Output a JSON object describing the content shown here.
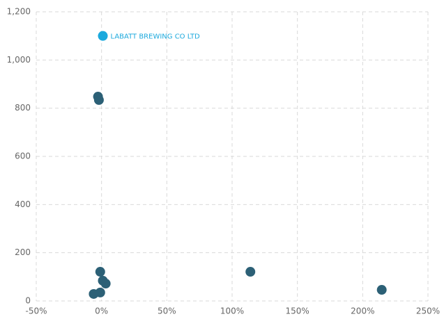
{
  "chart_data": {
    "type": "scatter",
    "series": [
      {
        "color": "#2c6076",
        "x": [
          -2.7,
          -2,
          -1,
          1,
          3.2,
          -6,
          -1,
          114,
          214.6
        ],
        "y": [
          848,
          834,
          121,
          84,
          72,
          29,
          35,
          121,
          46
        ]
      },
      {
        "color": "#1ca9dd",
        "x": [
          1
        ],
        "y": [
          1100
        ],
        "point_labels": [
          "LABATT BREWING CO LTD"
        ]
      }
    ],
    "xlim": [
      -50,
      250
    ],
    "xticks": [
      {
        "value": -50,
        "label": "-50%"
      },
      {
        "value": 0,
        "label": "0%"
      },
      {
        "value": 50,
        "label": "50%"
      },
      {
        "value": 100,
        "label": "100%"
      },
      {
        "value": 150,
        "label": "150%"
      },
      {
        "value": 200,
        "label": "200%"
      },
      {
        "value": 250,
        "label": "250%"
      }
    ],
    "ylim": [
      0,
      1200
    ],
    "yticks": [
      0,
      200,
      400,
      600,
      800,
      {
        "value": 1000,
        "label": "1,000"
      },
      {
        "value": 1200,
        "label": "1,200"
      }
    ],
    "grid": true
  }
}
